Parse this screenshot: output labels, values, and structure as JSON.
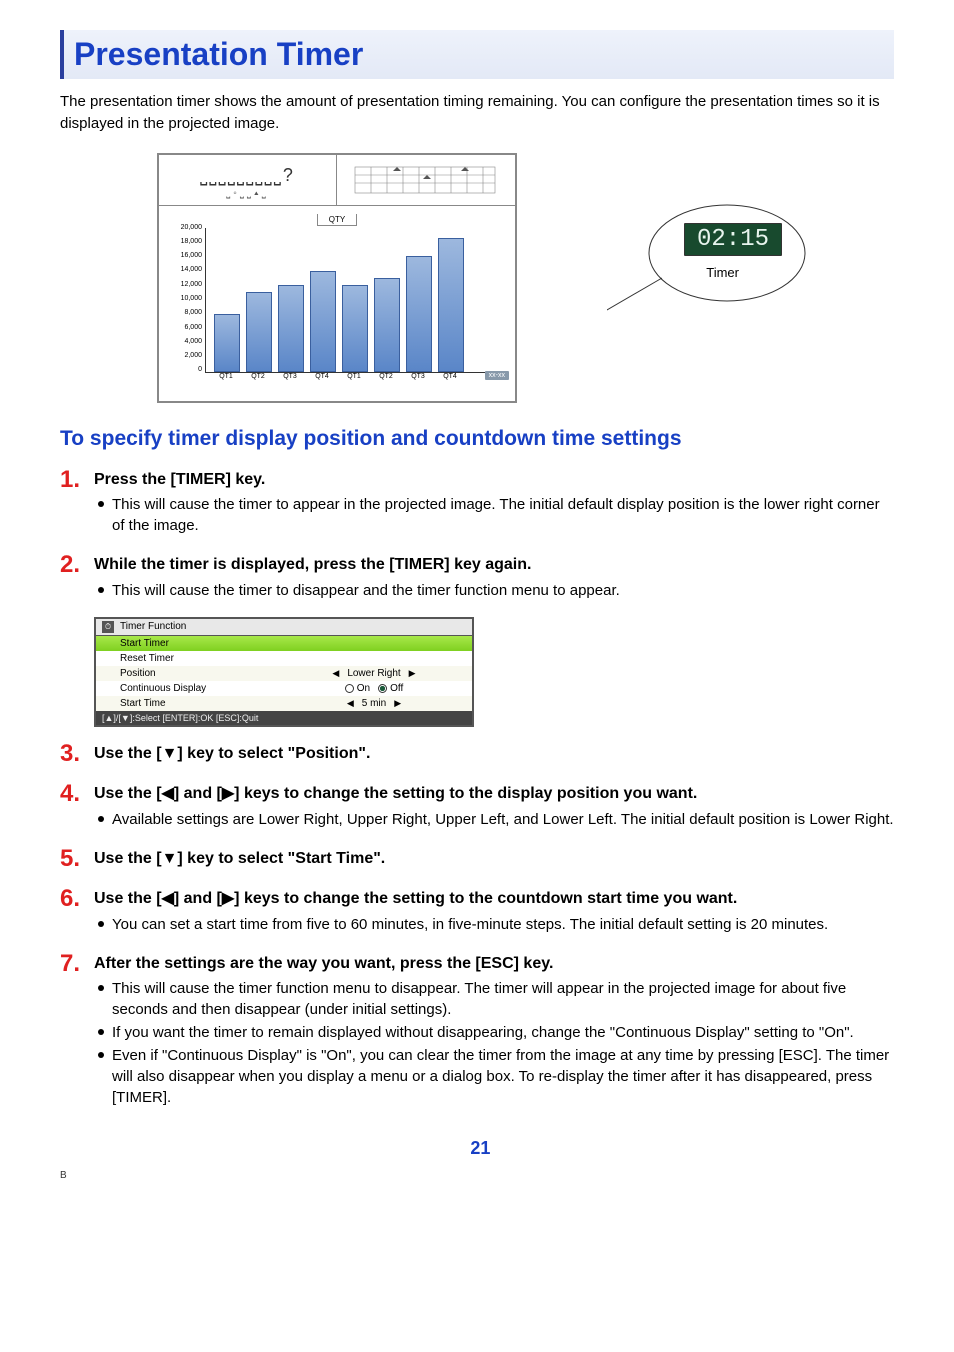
{
  "title": "Presentation Timer",
  "intro": "The presentation timer shows the amount of presentation timing remaining. You can configure the presentation times so it is displayed in the projected image.",
  "figure": {
    "header_glyphs": "⎵⎵⎵⎵⎵⎵⎵⎵⎵?",
    "header_sub": "⎵◦⎵⎵▴⎵",
    "qty_label": "QTY",
    "yticks": [
      "20,000",
      "18,000",
      "16,000",
      "14,000",
      "12,000",
      "10,000",
      "8,000",
      "6,000",
      "4,000",
      "2,000",
      "0"
    ],
    "xticks": [
      "QT1",
      "QT2",
      "QT3",
      "QT4",
      "QT1",
      "QT2",
      "QT3",
      "QT4"
    ],
    "bar_values": [
      8000,
      11000,
      12000,
      14000,
      12000,
      13000,
      16000,
      18500
    ],
    "ymax": 20000,
    "bar_color_top": "#9db8de",
    "bar_color_bottom": "#5a86c8",
    "bar_border": "#3a5f9e",
    "corner_badge": "xx-xx",
    "timer_display": "02:15",
    "timer_bg": "#184a2e",
    "timer_fg": "#e8f5ee",
    "timer_label": "Timer"
  },
  "subheading": "To specify timer display position and countdown time settings",
  "steps": [
    {
      "num": "1",
      "title": "Press the [TIMER] key.",
      "bullets": [
        "This will cause the timer to appear in the projected image. The initial default display position is the lower right corner of the image."
      ]
    },
    {
      "num": "2",
      "title": "While the timer is displayed, press the [TIMER] key again.",
      "bullets": [
        "This will cause the timer to disappear and the timer function menu to appear."
      ],
      "menu": {
        "title": "Timer Function",
        "rows": [
          {
            "label": "Start Timer",
            "type": "highlight"
          },
          {
            "label": "Reset Timer",
            "type": "plain"
          },
          {
            "label": "Position",
            "type": "alt",
            "control": "lr",
            "value": "Lower Right"
          },
          {
            "label": "Continuous Display",
            "type": "plain",
            "control": "radio",
            "on_label": "On",
            "off_label": "Off",
            "selected": "Off"
          },
          {
            "label": "Start Time",
            "type": "alt",
            "control": "lr",
            "value": "5 min"
          }
        ],
        "footer": "[▲]/[▼]:Select [ENTER]:OK [ESC]:Quit"
      }
    },
    {
      "num": "3",
      "title": "Use the [▼] key to select \"Position\"."
    },
    {
      "num": "4",
      "title": "Use the [◀] and [▶] keys to change the setting to the display position you want.",
      "bullets": [
        "Available settings are Lower Right, Upper Right, Upper Left, and Lower Left. The initial default position is Lower Right."
      ]
    },
    {
      "num": "5",
      "title": "Use the [▼] key to select \"Start Time\"."
    },
    {
      "num": "6",
      "title": "Use the [◀] and [▶] keys to change the setting to the countdown start time you want.",
      "bullets": [
        "You can set a start time from five to 60 minutes, in five-minute steps. The initial default setting is 20 minutes."
      ]
    },
    {
      "num": "7",
      "title": "After the settings are the way you want, press the [ESC] key.",
      "bullets": [
        "This will cause the timer function menu to disappear. The timer will appear in the projected image for about five seconds and then disappear (under initial settings).",
        "If you want the timer to remain displayed without disappearing, change the \"Continuous Display\" setting to \"On\".",
        "Even if \"Continuous Display\" is \"On\", you can clear the timer from the image at any time by pressing [ESC]. The timer will also disappear when you display a menu or a dialog box. To re-display the timer after it has disappeared, press [TIMER]."
      ]
    }
  ],
  "page_number": "21",
  "page_marker": "B"
}
